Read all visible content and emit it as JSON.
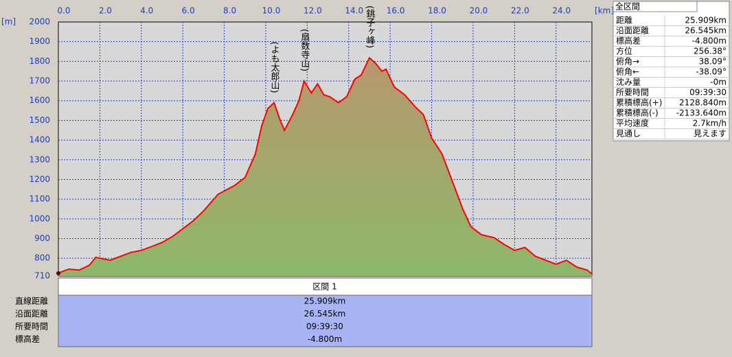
{
  "chart_data": {
    "type": "area",
    "x_unit": "[km]",
    "y_unit": "[m]",
    "x": [
      0,
      0.5,
      1.0,
      1.5,
      1.8,
      2.5,
      3.0,
      3.5,
      4.0,
      4.5,
      5.0,
      5.5,
      6.0,
      6.5,
      7.0,
      7.7,
      8.5,
      9.0,
      9.5,
      9.8,
      10.1,
      10.4,
      10.7,
      10.9,
      11.3,
      11.6,
      11.85,
      12.2,
      12.5,
      12.8,
      13.1,
      13.5,
      13.9,
      14.3,
      14.6,
      15.0,
      15.3,
      15.6,
      15.8,
      16.2,
      16.7,
      17.2,
      17.6,
      18.0,
      18.5,
      19.0,
      19.5,
      19.9,
      20.4,
      21.0,
      21.5,
      22.0,
      22.5,
      23.0,
      23.5,
      24.0,
      24.5,
      25.0,
      25.5,
      25.73
    ],
    "values": [
      725,
      745,
      740,
      765,
      805,
      790,
      810,
      830,
      840,
      860,
      880,
      910,
      950,
      990,
      1040,
      1125,
      1170,
      1210,
      1330,
      1470,
      1560,
      1590,
      1500,
      1450,
      1530,
      1600,
      1700,
      1640,
      1686,
      1630,
      1620,
      1590,
      1620,
      1710,
      1730,
      1818,
      1790,
      1750,
      1760,
      1670,
      1630,
      1570,
      1530,
      1410,
      1330,
      1190,
      1050,
      960,
      920,
      905,
      870,
      840,
      855,
      810,
      790,
      770,
      790,
      755,
      740,
      720
    ],
    "color": "#ff0000",
    "xlim": [
      0,
      25.73
    ],
    "xticks": [
      {
        "value": 0,
        "label": "0.0"
      },
      {
        "value": 2,
        "label": "2.0"
      },
      {
        "value": 4,
        "label": "4.0"
      },
      {
        "value": 6,
        "label": "6.0"
      },
      {
        "value": 8,
        "label": "8.0"
      },
      {
        "value": 10,
        "label": "10.0"
      },
      {
        "value": 12,
        "label": "12.0"
      },
      {
        "value": 14,
        "label": "14.0"
      },
      {
        "value": 16,
        "label": "16.0"
      },
      {
        "value": 18,
        "label": "18.0"
      },
      {
        "value": 20,
        "label": "20.0"
      },
      {
        "value": 22,
        "label": "22.0"
      },
      {
        "value": 24,
        "label": "24.0"
      }
    ],
    "ylim": [
      710,
      2000
    ],
    "yticks": [
      710,
      800,
      900,
      1000,
      1100,
      1200,
      1300,
      1400,
      1500,
      1600,
      1700,
      1800,
      1900,
      2000
    ],
    "grid": true,
    "annotations": [
      {
        "text": "(よも太郎山)",
        "x": 10.4,
        "y": 1590
      },
      {
        "text": "(扇数寺山)",
        "x": 11.85,
        "y": 1700
      },
      {
        "text": "(銚子ヶ峰)",
        "x": 15.0,
        "y": 1818
      }
    ]
  },
  "summary": {
    "title": "全区間",
    "rows": [
      [
        "距離",
        "25.909km"
      ],
      [
        "沿面距離",
        "26.545km"
      ],
      [
        "標高差",
        "-4.800m"
      ],
      [
        "方位",
        "256.38°"
      ],
      [
        "俯角→",
        "38.09°"
      ],
      [
        "俯角←",
        "-38.09°"
      ],
      [
        "沈み量",
        "-0m"
      ],
      [
        "所要時間",
        "09:39:30"
      ],
      [
        "累積標高(+)",
        "2128.840m"
      ],
      [
        "累積標高(-)",
        "-2133.640m"
      ],
      [
        "平均速度",
        "2.7km/h"
      ],
      [
        "見通し",
        "見えます"
      ]
    ]
  },
  "section": {
    "header": "区間 1",
    "rows": [
      [
        "直線距離",
        "25.909km"
      ],
      [
        "沿面距離",
        "26.545km"
      ],
      [
        "所要時間",
        "09:39:30"
      ],
      [
        "標高差",
        "-4.800m"
      ]
    ]
  }
}
